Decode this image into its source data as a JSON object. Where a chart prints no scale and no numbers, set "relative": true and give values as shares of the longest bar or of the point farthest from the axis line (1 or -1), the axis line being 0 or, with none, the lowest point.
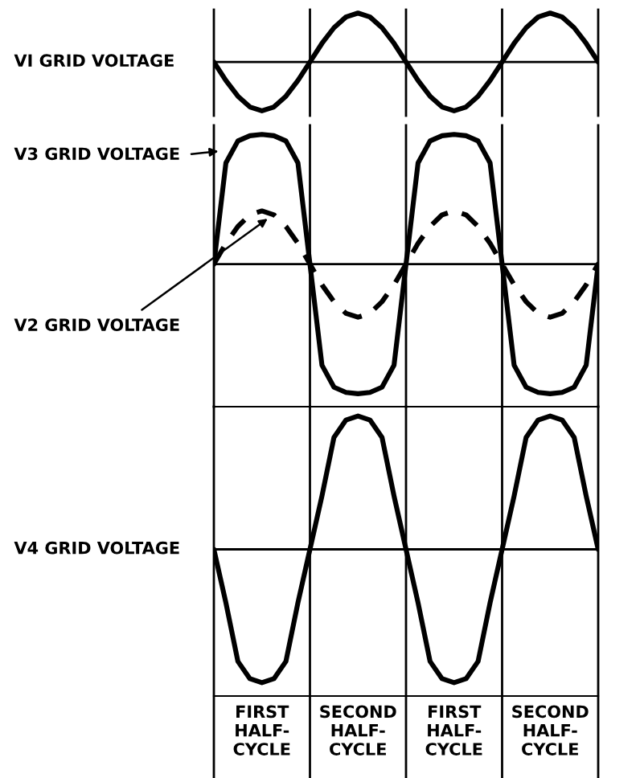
{
  "chart_data": [
    {
      "type": "line",
      "relative": true,
      "categories": [
        null,
        null,
        null,
        null,
        null,
        null,
        null,
        null,
        null,
        null,
        null,
        null,
        null,
        null,
        null,
        null,
        null,
        null,
        null,
        null,
        null,
        null,
        null,
        null,
        null,
        null,
        null,
        null,
        null,
        null,
        null,
        null,
        null
      ],
      "grid": "x",
      "series": [
        {
          "name": "VI GRID VOLTAGE",
          "color": "#000000",
          "line_style": "solid",
          "values": [
            0,
            -0.38,
            -0.7,
            -0.92,
            -1,
            -0.92,
            -0.7,
            -0.38,
            0,
            0.38,
            0.7,
            0.92,
            1,
            0.92,
            0.7,
            0.38,
            0,
            -0.38,
            -0.7,
            -0.92,
            -1,
            -0.92,
            -0.7,
            -0.38,
            0,
            0.38,
            0.7,
            0.92,
            1,
            0.92,
            0.7,
            0.38,
            0
          ]
        }
      ]
    },
    {
      "type": "line",
      "relative": true,
      "categories": [
        null,
        null,
        null,
        null,
        null,
        null,
        null,
        null,
        null,
        null,
        null,
        null,
        null,
        null,
        null,
        null,
        null,
        null,
        null,
        null,
        null,
        null,
        null,
        null,
        null,
        null,
        null,
        null,
        null,
        null,
        null,
        null,
        null
      ],
      "grid": "x",
      "series": [
        {
          "name": "V3 GRID VOLTAGE",
          "color": "#000000",
          "line_style": "solid",
          "values": [
            0,
            0.78,
            0.95,
            0.99,
            1,
            0.99,
            0.95,
            0.78,
            0,
            -0.78,
            -0.95,
            -0.99,
            -1,
            -0.99,
            -0.95,
            -0.78,
            0,
            0.78,
            0.95,
            0.99,
            1,
            0.99,
            0.95,
            0.78,
            0,
            -0.78,
            -0.95,
            -0.99,
            -1,
            -0.99,
            -0.95,
            -0.78,
            0
          ]
        },
        {
          "name": "V2 GRID VOLTAGE",
          "color": "#000000",
          "line_style": "dashed",
          "values": [
            0,
            0.16,
            0.29,
            0.38,
            0.41,
            0.38,
            0.29,
            0.16,
            0,
            -0.16,
            -0.29,
            -0.38,
            -0.41,
            -0.38,
            -0.29,
            -0.16,
            0,
            0.16,
            0.29,
            0.38,
            0.41,
            0.38,
            0.29,
            0.16,
            0,
            -0.16,
            -0.29,
            -0.38,
            -0.41,
            -0.38,
            -0.29,
            -0.16,
            0
          ]
        }
      ]
    },
    {
      "type": "line",
      "relative": true,
      "categories": [
        null,
        null,
        null,
        null,
        "FIRST\nHALF-\nCYCLE",
        null,
        null,
        null,
        null,
        null,
        null,
        null,
        "SECOND\nHALF-\nCYCLE",
        null,
        null,
        null,
        null,
        null,
        null,
        null,
        "FIRST\nHALF-\nCYCLE",
        null,
        null,
        null,
        null,
        null,
        null,
        null,
        "SECOND\nHALF-\nCYCLE",
        null,
        null,
        null,
        null
      ],
      "grid": "x",
      "series": [
        {
          "name": "V4 GRID VOLTAGE",
          "color": "#000000",
          "line_style": "solid",
          "values": [
            0,
            -0.4,
            -0.84,
            -0.97,
            -1,
            -0.97,
            -0.84,
            -0.4,
            0,
            0.4,
            0.84,
            0.97,
            1,
            0.97,
            0.84,
            0.4,
            0,
            -0.4,
            -0.84,
            -0.97,
            -1,
            -0.97,
            -0.84,
            -0.4,
            0,
            0.4,
            0.84,
            0.97,
            1,
            0.97,
            0.84,
            0.4,
            0
          ]
        }
      ]
    }
  ]
}
